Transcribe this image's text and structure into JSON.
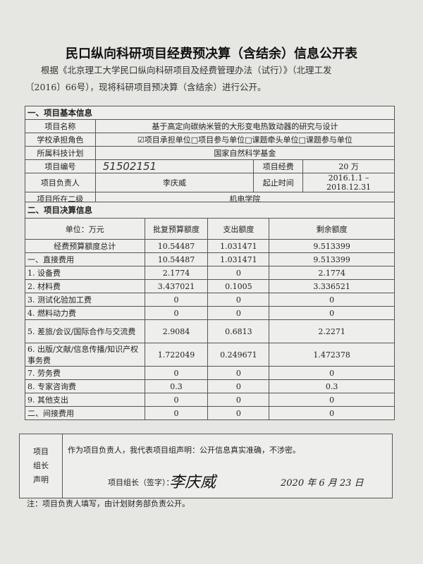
{
  "title": "民口纵向科研项目经费预决算（含结余）信息公开表",
  "intro_line1": "根据《北京理工大学民口纵向科研项目及经费管理办法（试行）》（北理工发",
  "intro_line2": "〔2016〕66号），现将科研项目预决算（含结余）进行公开。",
  "basic": {
    "section": "一、项目基本信息",
    "name_label": "项目名称",
    "name": "基于高定向碳纳米管的大形变电热致动器的研究与设计",
    "role_label": "学校承担角色",
    "role": "☑项目承担单位□项目参与单位□课题牵头单位□课题参与单位",
    "plan_label": "所属科技计划",
    "plan": "国家自然科学基金",
    "number_label": "项目编号",
    "number": "51502151",
    "funds_label": "项目经费",
    "funds": "20 万",
    "leader_label": "项目负责人",
    "leader": "李庆威",
    "period_label": "起止时间",
    "period": "2016.1.1 – 2018.12.31",
    "dept_label": "项目所在二级",
    "dept": "机电学院"
  },
  "budget": {
    "section": "二、项目决算信息",
    "headers": [
      "单位：万元",
      "批复预算额度",
      "支出额度",
      "剩余额度"
    ],
    "rows": [
      [
        "经费预算额度总计",
        "10.54487",
        "1.031471",
        "9.513399"
      ],
      [
        "一、直接费用",
        "10.54487",
        "1.031471",
        "9.513399"
      ],
      [
        "1. 设备费",
        "2.1774",
        "0",
        "2.1774"
      ],
      [
        "2. 材料费",
        "3.437021",
        "0.1005",
        "3.336521"
      ],
      [
        "3. 测试化验加工费",
        "0",
        "0",
        "0"
      ],
      [
        "4. 燃料动力费",
        "0",
        "0",
        "0"
      ],
      [
        "5. 差旅/会议/国际合作与交流费",
        "2.9084",
        "0.6813",
        "2.2271"
      ],
      [
        "6. 出版/文献/信息传播/知识产权事务费",
        "1.722049",
        "0.249671",
        "1.472378"
      ],
      [
        "7. 劳务费",
        "0",
        "0",
        "0"
      ],
      [
        "8. 专家咨询费",
        "0.3",
        "0",
        "0.3"
      ],
      [
        "9. 其他支出",
        "0",
        "0",
        "0"
      ],
      [
        "二、间接费用",
        "0",
        "0",
        "0"
      ]
    ]
  },
  "declaration": {
    "side": [
      "项目",
      "组长",
      "声明"
    ],
    "statement": "作为项目负责人，我代表项目组声明：公开信息真实准确，不涉密。",
    "sign_label": "项目组长（签字）：",
    "signature": "李庆威",
    "date": "2020 年 6 月 23 日"
  },
  "note": "注：项目负责人填写，由计划财务部负责公开。"
}
